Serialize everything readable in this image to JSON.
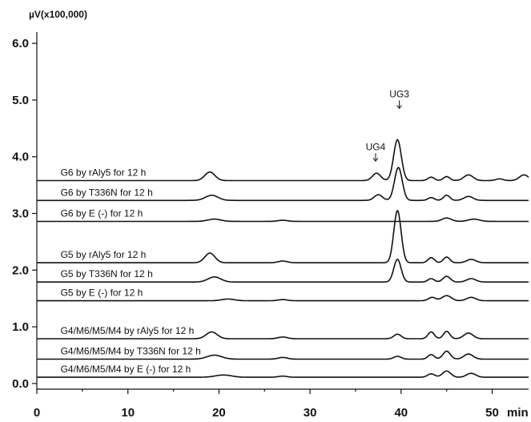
{
  "chart_data": {
    "type": "line",
    "ylabel": "µV(x100,000)",
    "xlabel": "min",
    "xlim": [
      0,
      54
    ],
    "ylim": [
      -0.1,
      6.2
    ],
    "x_ticks": [
      0,
      10,
      20,
      30,
      40,
      50
    ],
    "x_tick_labels": [
      "0",
      "10",
      "20",
      "30",
      "40",
      "50"
    ],
    "y_ticks": [
      0.0,
      1.0,
      2.0,
      3.0,
      4.0,
      5.0,
      6.0
    ],
    "y_tick_labels": [
      "0.0",
      "1.0",
      "2.0",
      "3.0",
      "4.0",
      "5.0",
      "6.0"
    ],
    "annotations": [
      {
        "text": "UG3",
        "x": 39.8,
        "y": 5.05
      },
      {
        "text": "UG4",
        "x": 37.2,
        "y": 4.12
      }
    ],
    "series": [
      {
        "name": "G6 by rAly5 for 12 h",
        "baseline": 3.58,
        "offset_x": 2.6,
        "peaks": [
          [
            19.0,
            0.15,
            0.55
          ],
          [
            37.3,
            0.13,
            0.45
          ],
          [
            39.6,
            0.72,
            0.42
          ],
          [
            43.3,
            0.06,
            0.35
          ],
          [
            45.0,
            0.07,
            0.35
          ],
          [
            47.4,
            0.1,
            0.5
          ],
          [
            50.8,
            0.03,
            0.4
          ],
          [
            53.5,
            0.1,
            0.5
          ]
        ]
      },
      {
        "name": "G6 by T336N for 12 h",
        "baseline": 3.23,
        "offset_x": 2.6,
        "peaks": [
          [
            19.2,
            0.09,
            0.7
          ],
          [
            37.5,
            0.1,
            0.45
          ],
          [
            39.7,
            0.58,
            0.42
          ],
          [
            43.3,
            0.05,
            0.35
          ],
          [
            45.0,
            0.09,
            0.35
          ],
          [
            47.4,
            0.07,
            0.5
          ]
        ]
      },
      {
        "name": "G6 by E (-) for 12 h",
        "baseline": 2.86,
        "offset_x": 2.6,
        "peaks": [
          [
            19.5,
            0.04,
            0.7
          ],
          [
            27.0,
            0.02,
            0.5
          ],
          [
            45.0,
            0.06,
            0.5
          ],
          [
            48.0,
            0.04,
            0.6
          ]
        ]
      },
      {
        "name": "G5 by rAly5 for 12 h",
        "baseline": 2.13,
        "offset_x": 2.6,
        "peaks": [
          [
            19.0,
            0.17,
            0.55
          ],
          [
            27.0,
            0.03,
            0.5
          ],
          [
            39.6,
            0.92,
            0.4
          ],
          [
            43.3,
            0.09,
            0.35
          ],
          [
            45.0,
            0.1,
            0.35
          ],
          [
            47.7,
            0.06,
            0.5
          ]
        ]
      },
      {
        "name": "G5 by T336N for 12 h",
        "baseline": 1.79,
        "offset_x": 2.6,
        "peaks": [
          [
            19.5,
            0.09,
            0.7
          ],
          [
            39.6,
            0.4,
            0.4
          ],
          [
            43.3,
            0.06,
            0.35
          ],
          [
            45.0,
            0.1,
            0.4
          ],
          [
            47.7,
            0.06,
            0.5
          ]
        ]
      },
      {
        "name": "G5 by E (-) for 12 h",
        "baseline": 1.46,
        "offset_x": 2.6,
        "peaks": [
          [
            21.0,
            0.03,
            0.7
          ],
          [
            27.0,
            0.02,
            0.5
          ],
          [
            43.4,
            0.06,
            0.4
          ],
          [
            45.0,
            0.09,
            0.5
          ],
          [
            47.7,
            0.06,
            0.5
          ]
        ]
      },
      {
        "name": "G4/M6/M5/M4 by rAly5 for 12 h",
        "baseline": 0.79,
        "offset_x": 2.6,
        "peaks": [
          [
            19.2,
            0.12,
            0.6
          ],
          [
            27.0,
            0.03,
            0.5
          ],
          [
            39.6,
            0.08,
            0.4
          ],
          [
            43.3,
            0.12,
            0.35
          ],
          [
            45.0,
            0.13,
            0.35
          ],
          [
            47.4,
            0.1,
            0.5
          ]
        ]
      },
      {
        "name": "G4/M6/M5/M4 by T336N for 12 h",
        "baseline": 0.43,
        "offset_x": 2.6,
        "peaks": [
          [
            19.5,
            0.07,
            0.8
          ],
          [
            27.0,
            0.03,
            0.5
          ],
          [
            39.6,
            0.05,
            0.4
          ],
          [
            43.3,
            0.08,
            0.35
          ],
          [
            45.0,
            0.14,
            0.4
          ],
          [
            47.4,
            0.09,
            0.5
          ]
        ]
      },
      {
        "name": "G4/M6/M5/M4 by E (-) for 12 h",
        "baseline": 0.11,
        "offset_x": 2.6,
        "peaks": [
          [
            20.5,
            0.04,
            0.9
          ],
          [
            27.0,
            0.02,
            0.5
          ],
          [
            43.3,
            0.06,
            0.4
          ],
          [
            45.0,
            0.11,
            0.45
          ],
          [
            47.7,
            0.07,
            0.5
          ]
        ]
      }
    ]
  }
}
